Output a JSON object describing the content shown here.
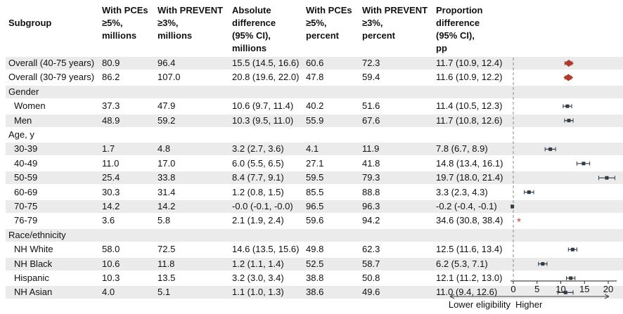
{
  "headers": [
    "Subgroup",
    "With PCEs\n≥5%,\nmillions",
    "With PREVENT\n≥3%,\nmillions",
    "Absolute\ndifference\n(95% CI),\nmillions",
    "With PCEs\n≥5%,\npercent",
    "With PREVENT\n≥3%,\npercent",
    "Proportion\ndifference\n(95% CI),\npp"
  ],
  "rows": [
    {
      "label": "Overall (40-75 years)",
      "pces_m": "80.9",
      "prevent_m": "96.4",
      "abs_diff": "15.5 (14.5, 16.6)",
      "pces_pct": "60.6",
      "prevent_pct": "72.3",
      "prop_diff": "11.7 (10.9, 12.4)"
    },
    {
      "label": "Overall (30-79 years)",
      "pces_m": "86.2",
      "prevent_m": "107.0",
      "abs_diff": "20.8 (19.6, 22.0)",
      "pces_pct": "47.8",
      "prevent_pct": "59.4",
      "prop_diff": "11.6 (10.9, 12.2)"
    },
    {
      "label": "Gender",
      "pces_m": "",
      "prevent_m": "",
      "abs_diff": "",
      "pces_pct": "",
      "prevent_pct": "",
      "prop_diff": ""
    },
    {
      "label": "Women",
      "pces_m": "37.3",
      "prevent_m": "47.9",
      "abs_diff": "10.6 (9.7, 11.4)",
      "pces_pct": "40.2",
      "prevent_pct": "51.6",
      "prop_diff": "11.4 (10.5, 12.3)"
    },
    {
      "label": "Men",
      "pces_m": "48.9",
      "prevent_m": "59.2",
      "abs_diff": "10.3 (9.5, 11.0)",
      "pces_pct": "55.9",
      "prevent_pct": "67.6",
      "prop_diff": "11.7 (10.8, 12.6)"
    },
    {
      "label": "Age, y",
      "pces_m": "",
      "prevent_m": "",
      "abs_diff": "",
      "pces_pct": "",
      "prevent_pct": "",
      "prop_diff": ""
    },
    {
      "label": "30-39",
      "pces_m": "1.7",
      "prevent_m": "4.8",
      "abs_diff": "3.2 (2.7, 3.6)",
      "pces_pct": "4.1",
      "prevent_pct": "11.9",
      "prop_diff": "7.8 (6.7, 8.9)"
    },
    {
      "label": "40-49",
      "pces_m": "11.0",
      "prevent_m": "17.0",
      "abs_diff": "6.0 (5.5, 6.5)",
      "pces_pct": "27.1",
      "prevent_pct": "41.8",
      "prop_diff": "14.8 (13.4, 16.1)"
    },
    {
      "label": "50-59",
      "pces_m": "25.4",
      "prevent_m": "33.8",
      "abs_diff": "8.4 (7.7, 9.1)",
      "pces_pct": "59.5",
      "prevent_pct": "79.3",
      "prop_diff": "19.7 (18.0, 21.4)"
    },
    {
      "label": "60-69",
      "pces_m": "30.3",
      "prevent_m": "31.4",
      "abs_diff": "1.2 (0.8, 1.5)",
      "pces_pct": "85.5",
      "prevent_pct": "88.8",
      "prop_diff": "3.3 (2.3, 4.3)"
    },
    {
      "label": "70-75",
      "pces_m": "14.2",
      "prevent_m": "14.2",
      "abs_diff": "-0.0 (-0.1, -0.0)",
      "pces_pct": "96.5",
      "prevent_pct": "96.3",
      "prop_diff": "-0.2 (-0.4, -0.1)"
    },
    {
      "label": "76-79",
      "pces_m": "3.6",
      "prevent_m": "5.8",
      "abs_diff": "2.1 (1.9, 2.4)",
      "pces_pct": "59.6",
      "prevent_pct": "94.2",
      "prop_diff": "34.6 (30.8, 38.4)"
    },
    {
      "label": "Race/ethnicity",
      "pces_m": "",
      "prevent_m": "",
      "abs_diff": "",
      "pces_pct": "",
      "prevent_pct": "",
      "prop_diff": ""
    },
    {
      "label": "NH White",
      "pces_m": "58.0",
      "prevent_m": "72.5",
      "abs_diff": "14.6 (13.5, 15.6)",
      "pces_pct": "49.8",
      "prevent_pct": "62.3",
      "prop_diff": "12.5 (11.6, 13.4)"
    },
    {
      "label": "NH Black",
      "pces_m": "10.6",
      "prevent_m": "11.8",
      "abs_diff": "1.2 (1.1, 1.4)",
      "pces_pct": "52.5",
      "prevent_pct": "58.7",
      "prop_diff": "6.2 (5.3, 7.1)"
    },
    {
      "label": "Hispanic",
      "pces_m": "10.3",
      "prevent_m": "13.5",
      "abs_diff": "3.2 (3.0, 3.4)",
      "pces_pct": "38.8",
      "prevent_pct": "50.8",
      "prop_diff": "12.1 (11.2, 13.0)"
    },
    {
      "label": "NH Asian",
      "pces_m": "4.0",
      "prevent_m": "5.1",
      "abs_diff": "1.1 (1.0, 1.3)",
      "pces_pct": "38.6",
      "prevent_pct": "49.6",
      "prop_diff": "11.0 (9.4, 12.6)"
    }
  ],
  "chart_data": {
    "type": "forest",
    "x_ticks": [
      0,
      5,
      10,
      15,
      20
    ],
    "xlim": [
      -0.6,
      21.8
    ],
    "reference_line": 0,
    "lower_label": "Lower eligibility",
    "higher_label": "Higher",
    "out_of_range_marker": "*",
    "colors": {
      "overall": "#b03a2e",
      "subgroup": "#2f3b45",
      "reference": "#888888",
      "asterisk": "#c0392b"
    },
    "points": [
      {
        "row": 0,
        "estimate": 11.7,
        "lower": 10.9,
        "upper": 12.4,
        "marker": "diamond"
      },
      {
        "row": 1,
        "estimate": 11.6,
        "lower": 10.9,
        "upper": 12.2,
        "marker": "diamond"
      },
      {
        "row": 3,
        "estimate": 11.4,
        "lower": 10.5,
        "upper": 12.3,
        "marker": "square"
      },
      {
        "row": 4,
        "estimate": 11.7,
        "lower": 10.8,
        "upper": 12.6,
        "marker": "square"
      },
      {
        "row": 6,
        "estimate": 7.8,
        "lower": 6.7,
        "upper": 8.9,
        "marker": "square"
      },
      {
        "row": 7,
        "estimate": 14.8,
        "lower": 13.4,
        "upper": 16.1,
        "marker": "square"
      },
      {
        "row": 8,
        "estimate": 19.7,
        "lower": 18.0,
        "upper": 21.4,
        "marker": "square"
      },
      {
        "row": 9,
        "estimate": 3.3,
        "lower": 2.3,
        "upper": 4.3,
        "marker": "square"
      },
      {
        "row": 10,
        "estimate": -0.2,
        "lower": -0.4,
        "upper": -0.1,
        "marker": "square"
      },
      {
        "row": 11,
        "estimate": 34.6,
        "lower": 30.8,
        "upper": 38.4,
        "marker": "asterisk"
      },
      {
        "row": 13,
        "estimate": 12.5,
        "lower": 11.6,
        "upper": 13.4,
        "marker": "square"
      },
      {
        "row": 14,
        "estimate": 6.2,
        "lower": 5.3,
        "upper": 7.1,
        "marker": "square"
      },
      {
        "row": 15,
        "estimate": 12.1,
        "lower": 11.2,
        "upper": 13.0,
        "marker": "square"
      },
      {
        "row": 16,
        "estimate": 11.0,
        "lower": 9.4,
        "upper": 12.6,
        "marker": "square"
      }
    ]
  }
}
